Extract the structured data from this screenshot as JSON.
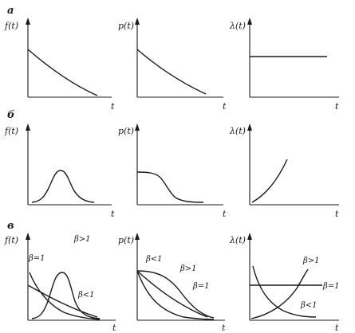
{
  "rows": [
    {
      "label": "а",
      "panels": [
        {
          "ylabel": "f(t)",
          "xlabel": "t",
          "curves": [
            {
              "label": ""
            }
          ]
        },
        {
          "ylabel": "p(t)",
          "xlabel": "t",
          "curves": [
            {
              "label": ""
            }
          ]
        },
        {
          "ylabel": "λ(t)",
          "xlabel": "t",
          "curves": [
            {
              "label": ""
            }
          ]
        }
      ]
    },
    {
      "label": "б",
      "panels": [
        {
          "ylabel": "f(t)",
          "xlabel": "t",
          "curves": [
            {
              "label": ""
            }
          ]
        },
        {
          "ylabel": "p(t)",
          "xlabel": "t",
          "curves": [
            {
              "label": ""
            }
          ]
        },
        {
          "ylabel": "λ(t)",
          "xlabel": "t",
          "curves": [
            {
              "label": ""
            }
          ]
        }
      ]
    },
    {
      "label": "в",
      "panels": [
        {
          "ylabel": "f(t)",
          "xlabel": "t",
          "curves": [
            {
              "label": "β=1"
            },
            {
              "label": "β>1"
            },
            {
              "label": "β<1"
            }
          ]
        },
        {
          "ylabel": "p(t)",
          "xlabel": "t",
          "curves": [
            {
              "label": "β<1"
            },
            {
              "label": "β>1"
            },
            {
              "label": "β=1"
            }
          ]
        },
        {
          "ylabel": "λ(t)",
          "xlabel": "t",
          "curves": [
            {
              "label": "β>1"
            },
            {
              "label": "β=1"
            },
            {
              "label": "β<1"
            }
          ]
        }
      ]
    }
  ]
}
